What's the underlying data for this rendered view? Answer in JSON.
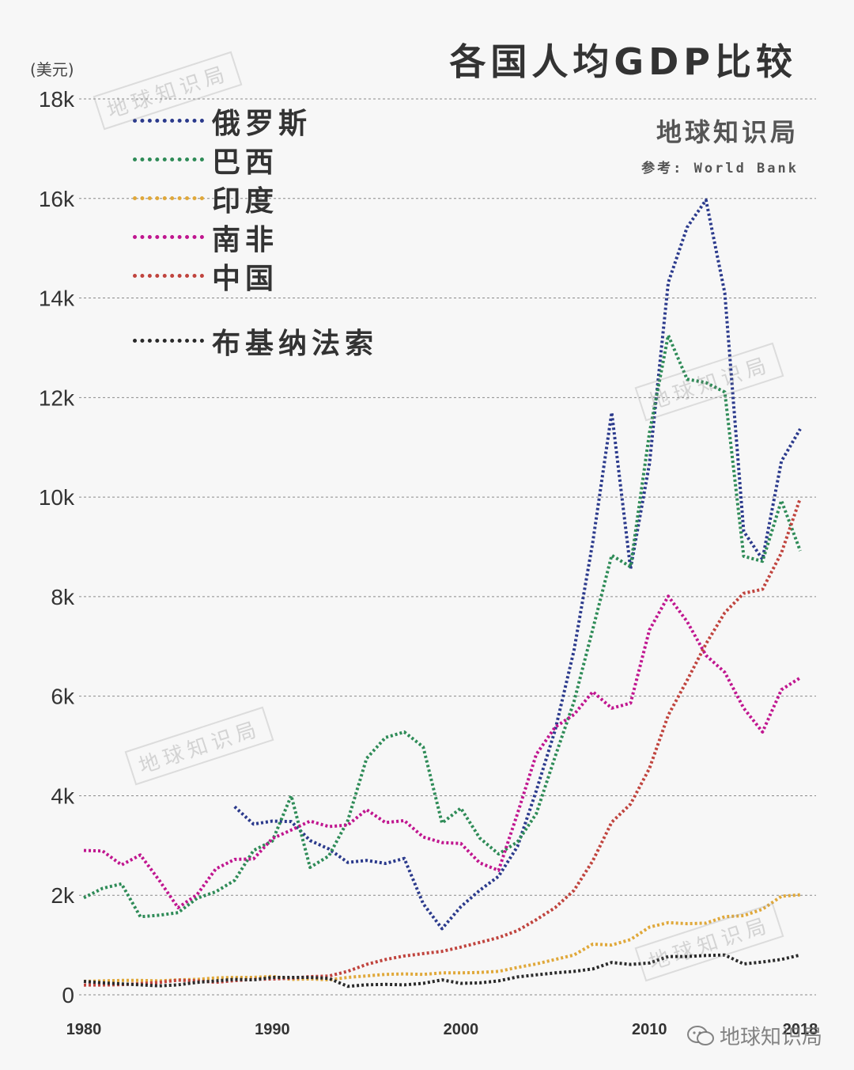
{
  "header": {
    "title": "各国人均GDP比较",
    "unit": "(美元)",
    "brand": "地球知识局",
    "source": "参考: World Bank"
  },
  "watermark_text": "地球知识局",
  "footer": {
    "brand": "地球知识局",
    "icon": "wechat-icon"
  },
  "chart_data": {
    "type": "line",
    "title": "各国人均GDP比较",
    "ylabel": "(美元)",
    "xlabel": "",
    "xlim": [
      1980,
      2018
    ],
    "ylim": [
      0,
      18000
    ],
    "yticks": [
      0,
      2000,
      4000,
      6000,
      8000,
      10000,
      12000,
      14000,
      16000,
      18000
    ],
    "ytick_labels": [
      "0",
      "2k",
      "4k",
      "6k",
      "8k",
      "10k",
      "12k",
      "14k",
      "16k",
      "18k"
    ],
    "xticks": [
      1980,
      1990,
      2000,
      2010,
      2018
    ],
    "xtick_labels": [
      "1980",
      "1990",
      "2000",
      "2010",
      "2018"
    ],
    "grid": "horizontal dashed",
    "legend_position": "top-left",
    "series": [
      {
        "name": "俄罗斯",
        "color": "#2b3a8c",
        "x": [
          1988,
          1989,
          1990,
          1991,
          1992,
          1993,
          1994,
          1995,
          1996,
          1997,
          1998,
          1999,
          2000,
          2001,
          2002,
          2003,
          2004,
          2005,
          2006,
          2007,
          2008,
          2009,
          2010,
          2011,
          2012,
          2013,
          2014,
          2015,
          2016,
          2017,
          2018
        ],
        "values": [
          3780,
          3430,
          3490,
          3480,
          3100,
          2930,
          2660,
          2700,
          2640,
          2740,
          1830,
          1330,
          1770,
          2100,
          2380,
          2980,
          4100,
          5320,
          6920,
          9100,
          11700,
          8560,
          10670,
          14310,
          15420,
          15970,
          14100,
          9310,
          8750,
          10720,
          11370
        ]
      },
      {
        "name": "巴西",
        "color": "#2e8b57",
        "x": [
          1980,
          1981,
          1982,
          1983,
          1984,
          1985,
          1986,
          1987,
          1988,
          1989,
          1990,
          1991,
          1992,
          1993,
          1994,
          1995,
          1996,
          1997,
          1998,
          1999,
          2000,
          2001,
          2002,
          2003,
          2004,
          2005,
          2006,
          2007,
          2008,
          2009,
          2010,
          2011,
          2012,
          2013,
          2014,
          2015,
          2016,
          2017,
          2018
        ],
        "values": [
          1950,
          2140,
          2230,
          1570,
          1600,
          1650,
          1940,
          2070,
          2300,
          2900,
          3090,
          4000,
          2560,
          2790,
          3500,
          4750,
          5170,
          5280,
          4980,
          3450,
          3750,
          3150,
          2830,
          3070,
          3640,
          4790,
          5890,
          7350,
          8830,
          8600,
          11290,
          13250,
          12370,
          12300,
          12110,
          8810,
          8710,
          9930,
          8920
        ]
      },
      {
        "name": "印度",
        "color": "#e0a83a",
        "x": [
          1980,
          1981,
          1982,
          1983,
          1984,
          1985,
          1986,
          1987,
          1988,
          1989,
          1990,
          1991,
          1992,
          1993,
          1994,
          1995,
          1996,
          1997,
          1998,
          1999,
          2000,
          2001,
          2002,
          2003,
          2004,
          2005,
          2006,
          2007,
          2008,
          2009,
          2010,
          2011,
          2012,
          2013,
          2014,
          2015,
          2016,
          2017,
          2018
        ],
        "values": [
          270,
          280,
          290,
          290,
          280,
          300,
          310,
          340,
          350,
          350,
          370,
          310,
          320,
          300,
          350,
          380,
          410,
          420,
          410,
          440,
          440,
          450,
          470,
          550,
          620,
          710,
          800,
          1020,
          1000,
          1110,
          1360,
          1450,
          1430,
          1440,
          1570,
          1590,
          1720,
          1980,
          2010
        ]
      },
      {
        "name": "南非",
        "color": "#c0168f",
        "x": [
          1980,
          1981,
          1982,
          1983,
          1984,
          1985,
          1986,
          1987,
          1988,
          1989,
          1990,
          1991,
          1992,
          1993,
          1994,
          1995,
          1996,
          1997,
          1998,
          1999,
          2000,
          2001,
          2002,
          2003,
          2004,
          2005,
          2006,
          2007,
          2008,
          2009,
          2010,
          2011,
          2012,
          2013,
          2014,
          2015,
          2016,
          2017,
          2018
        ],
        "values": [
          2900,
          2890,
          2610,
          2810,
          2300,
          1750,
          2010,
          2530,
          2720,
          2730,
          3140,
          3310,
          3490,
          3380,
          3410,
          3720,
          3460,
          3500,
          3170,
          3060,
          3040,
          2650,
          2500,
          3640,
          4830,
          5380,
          5630,
          6090,
          5760,
          5860,
          7330,
          8010,
          7500,
          6820,
          6480,
          5760,
          5280,
          6130,
          6370
        ]
      },
      {
        "name": "中国",
        "color": "#c0443e",
        "x": [
          1980,
          1981,
          1982,
          1983,
          1984,
          1985,
          1986,
          1987,
          1988,
          1989,
          1990,
          1991,
          1992,
          1993,
          1994,
          1995,
          1996,
          1997,
          1998,
          1999,
          2000,
          2001,
          2002,
          2003,
          2004,
          2005,
          2006,
          2007,
          2008,
          2009,
          2010,
          2011,
          2012,
          2013,
          2014,
          2015,
          2016,
          2017,
          2018
        ],
        "values": [
          195,
          197,
          203,
          225,
          250,
          294,
          281,
          252,
          284,
          310,
          318,
          333,
          366,
          377,
          473,
          610,
          709,
          781,
          828,
          873,
          959,
          1053,
          1149,
          1289,
          1509,
          1753,
          2099,
          2694,
          3468,
          3832,
          4550,
          5618,
          6317,
          7051,
          7679,
          8067,
          8148,
          8879,
          9977
        ]
      },
      {
        "name": "布基纳法索",
        "color": "#2a2a2a",
        "x": [
          1980,
          1981,
          1982,
          1983,
          1984,
          1985,
          1986,
          1987,
          1988,
          1989,
          1990,
          1991,
          1992,
          1993,
          1994,
          1995,
          1996,
          1997,
          1998,
          1999,
          2000,
          2001,
          2002,
          2003,
          2004,
          2005,
          2006,
          2007,
          2008,
          2009,
          2010,
          2011,
          2012,
          2013,
          2014,
          2015,
          2016,
          2017,
          2018
        ],
        "values": [
          270,
          240,
          220,
          200,
          180,
          200,
          250,
          280,
          310,
          300,
          350,
          350,
          350,
          330,
          170,
          200,
          210,
          200,
          230,
          300,
          230,
          240,
          280,
          360,
          400,
          440,
          470,
          520,
          650,
          610,
          640,
          770,
          770,
          790,
          800,
          620,
          660,
          710,
          800
        ]
      }
    ]
  }
}
